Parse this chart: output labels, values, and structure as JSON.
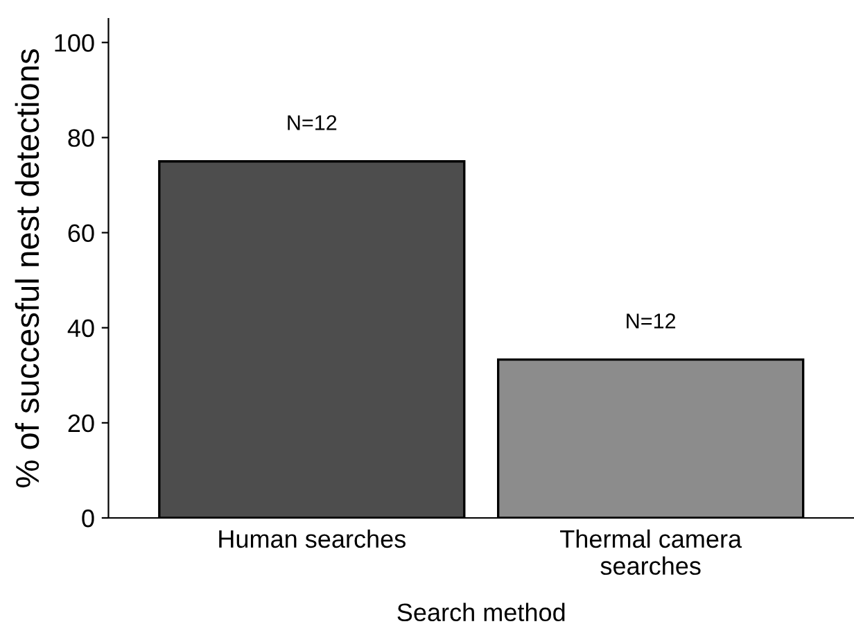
{
  "chart_data": {
    "type": "bar",
    "xlabel": "Search method",
    "ylabel": "% of succesful nest detections",
    "categories": [
      "Human searches",
      "Thermal camera\nsearches"
    ],
    "values": [
      75,
      33.3
    ],
    "colors": [
      "#4d4d4d",
      "#8c8c8c"
    ],
    "ylim": [
      0,
      105
    ],
    "yticks": [
      0,
      20,
      40,
      60,
      80,
      100
    ],
    "grid": false,
    "annotations": [
      "N=12",
      "N=12"
    ]
  }
}
